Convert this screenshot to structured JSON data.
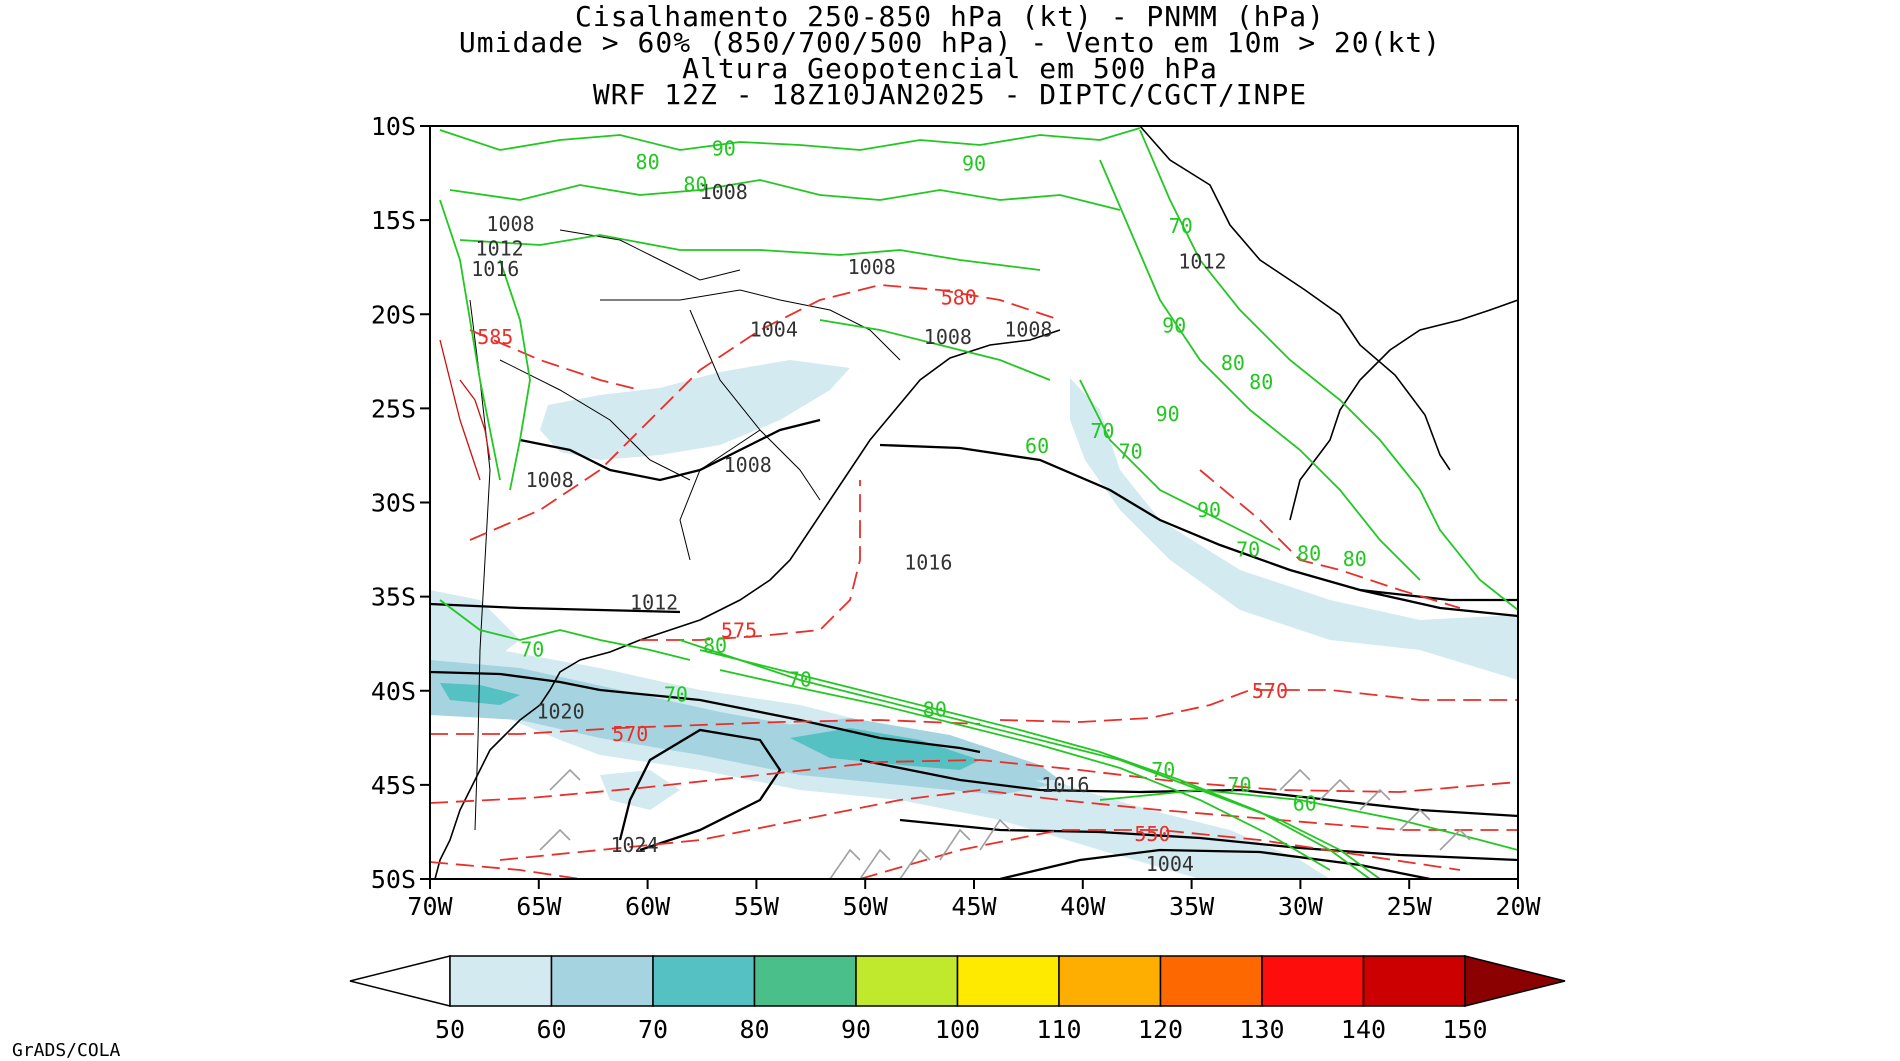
{
  "title": {
    "lines": [
      "Cisalhamento 250-850 hPa (kt) - PNMM (hPa)",
      "Umidade > 60% (850/700/500 hPa) - Vento em 10m > 20(kt)",
      "Altura Geopotencial em 500 hPa",
      "WRF 12Z - 18Z10JAN2025 - DIPTC/CGCT/INPE"
    ]
  },
  "map": {
    "lat_labels": [
      "10S",
      "15S",
      "20S",
      "25S",
      "30S",
      "35S",
      "40S",
      "45S",
      "50S"
    ],
    "lon_labels": [
      "70W",
      "65W",
      "60W",
      "55W",
      "50W",
      "45W",
      "40W",
      "35W",
      "30W",
      "25W",
      "20W"
    ],
    "lat_range": [
      -10,
      -50
    ],
    "lon_range": [
      -70,
      -20
    ]
  },
  "contours": {
    "pressure_labels": [
      {
        "text": "1008",
        "lon": -56.5,
        "lat": -13.5
      },
      {
        "text": "1008",
        "lon": -66.3,
        "lat": -15.2
      },
      {
        "text": "1012",
        "lon": -66.8,
        "lat": -16.5
      },
      {
        "text": "1016",
        "lon": -67.0,
        "lat": -17.6
      },
      {
        "text": "1008",
        "lon": -49.7,
        "lat": -17.5
      },
      {
        "text": "1012",
        "lon": -34.5,
        "lat": -17.2
      },
      {
        "text": "1004",
        "lon": -54.2,
        "lat": -20.8
      },
      {
        "text": "1008",
        "lon": -46.2,
        "lat": -21.2
      },
      {
        "text": "1008",
        "lon": -42.5,
        "lat": -20.8
      },
      {
        "text": "1008",
        "lon": -55.4,
        "lat": -28.0
      },
      {
        "text": "1008",
        "lon": -64.5,
        "lat": -28.8
      },
      {
        "text": "1016",
        "lon": -47.1,
        "lat": -33.2
      },
      {
        "text": "1012",
        "lon": -59.7,
        "lat": -35.3
      },
      {
        "text": "1020",
        "lon": -64.0,
        "lat": -41.1
      },
      {
        "text": "1016",
        "lon": -40.8,
        "lat": -45.0
      },
      {
        "text": "1024",
        "lon": -60.6,
        "lat": -48.2
      },
      {
        "text": "1004",
        "lon": -36.0,
        "lat": -49.2
      }
    ],
    "height_labels": [
      {
        "text": "580",
        "lon": -45.7,
        "lat": -19.1
      },
      {
        "text": "585",
        "lon": -67.0,
        "lat": -21.2
      },
      {
        "text": "575",
        "lon": -55.8,
        "lat": -36.8
      },
      {
        "text": "570",
        "lon": -31.4,
        "lat": -40.0
      },
      {
        "text": "570",
        "lon": -60.8,
        "lat": -42.3
      },
      {
        "text": "550",
        "lon": -36.8,
        "lat": -47.6
      }
    ],
    "humidity_labels": [
      {
        "text": "90",
        "lon": -56.5,
        "lat": -11.2
      },
      {
        "text": "80",
        "lon": -60.0,
        "lat": -11.9
      },
      {
        "text": "90",
        "lon": -45.0,
        "lat": -12.0
      },
      {
        "text": "80",
        "lon": -57.8,
        "lat": -13.1
      },
      {
        "text": "70",
        "lon": -35.5,
        "lat": -15.3
      },
      {
        "text": "90",
        "lon": -35.8,
        "lat": -20.6
      },
      {
        "text": "80",
        "lon": -33.1,
        "lat": -22.6
      },
      {
        "text": "80",
        "lon": -31.8,
        "lat": -23.6
      },
      {
        "text": "90",
        "lon": -36.1,
        "lat": -25.3
      },
      {
        "text": "70",
        "lon": -39.1,
        "lat": -26.2
      },
      {
        "text": "60",
        "lon": -42.1,
        "lat": -27.0
      },
      {
        "text": "70",
        "lon": -37.8,
        "lat": -27.3
      },
      {
        "text": "90",
        "lon": -34.2,
        "lat": -30.4
      },
      {
        "text": "70",
        "lon": -32.4,
        "lat": -32.5
      },
      {
        "text": "80",
        "lon": -29.6,
        "lat": -32.7
      },
      {
        "text": "80",
        "lon": -27.5,
        "lat": -33.0
      },
      {
        "text": "70",
        "lon": -65.3,
        "lat": -37.8
      },
      {
        "text": "80",
        "lon": -56.9,
        "lat": -37.6
      },
      {
        "text": "70",
        "lon": -53.0,
        "lat": -39.4
      },
      {
        "text": "70",
        "lon": -58.7,
        "lat": -40.2
      },
      {
        "text": "80",
        "lon": -46.8,
        "lat": -41.0
      },
      {
        "text": "70",
        "lon": -36.3,
        "lat": -44.2
      },
      {
        "text": "70",
        "lon": -32.8,
        "lat": -45.0
      },
      {
        "text": "60",
        "lon": -29.8,
        "lat": -46.0
      }
    ]
  },
  "colorbar": {
    "labels": [
      "50",
      "60",
      "70",
      "80",
      "90",
      "100",
      "110",
      "120",
      "130",
      "140",
      "150"
    ],
    "colors": [
      "#d2eaf0",
      "#a5d4e0",
      "#55c1c2",
      "#4bbf8a",
      "#c0e82c",
      "#fee900",
      "#feae00",
      "#fe6800",
      "#fe0d0d",
      "#cc0000",
      "#8b0000"
    ],
    "under_color": "#ffffff"
  },
  "colors": {
    "pressure": "#000000",
    "pressure_label": "#333333",
    "height": "#e8302a",
    "humidity": "#22c722",
    "shear_light": "#d2eaf0",
    "shear_mid": "#a5d4e0",
    "shear_dark": "#55c1c2",
    "wind_barb": "#a0a0a0"
  },
  "credit": "GrADS/COLA"
}
